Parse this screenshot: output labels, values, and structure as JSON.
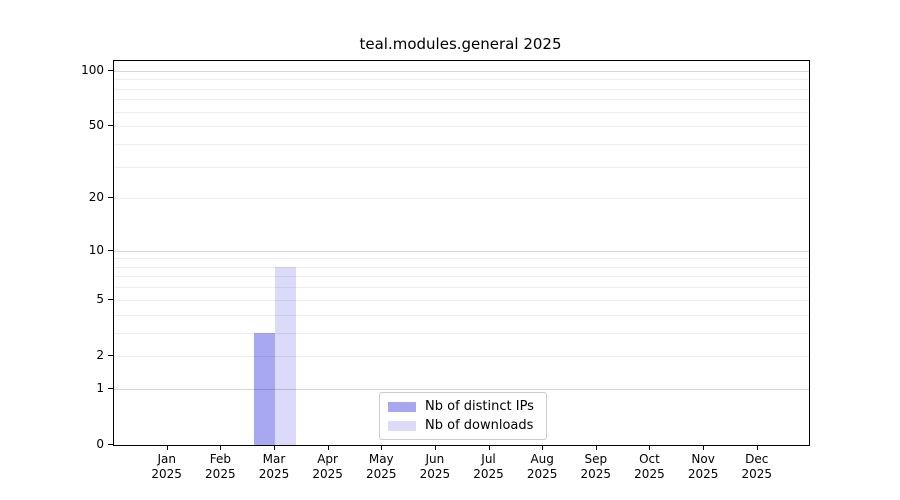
{
  "title": "teal.modules.general 2025",
  "legend": {
    "items": [
      {
        "label": "Nb of distinct IPs",
        "color": "#a8a8f2"
      },
      {
        "label": "Nb of downloads",
        "color": "#dbdbf9"
      }
    ],
    "position": "lower center"
  },
  "chart_data": {
    "type": "bar",
    "title": "teal.modules.general 2025",
    "categories": [
      "Jan 2025",
      "Feb 2025",
      "Mar 2025",
      "Apr 2025",
      "May 2025",
      "Jun 2025",
      "Jul 2025",
      "Aug 2025",
      "Sep 2025",
      "Oct 2025",
      "Nov 2025",
      "Dec 2025"
    ],
    "series": [
      {
        "name": "Nb of distinct IPs",
        "color": "#a8a8f2",
        "values": [
          0,
          0,
          3,
          0,
          0,
          0,
          0,
          0,
          0,
          0,
          0,
          0
        ]
      },
      {
        "name": "Nb of downloads",
        "color": "#dbdbf9",
        "values": [
          0,
          0,
          8,
          0,
          0,
          0,
          0,
          0,
          0,
          0,
          0,
          0
        ]
      }
    ],
    "xlabel": "",
    "ylabel": "",
    "yscale": "log1p",
    "ylim": [
      0,
      113
    ],
    "yticks": [
      0,
      1,
      2,
      5,
      10,
      20,
      50,
      100
    ],
    "major_gridlines": [
      1,
      10,
      100
    ],
    "minor_gridlines": [
      2,
      3,
      4,
      5,
      6,
      7,
      8,
      9,
      20,
      30,
      40,
      50,
      60,
      70,
      80,
      90
    ],
    "grid": true,
    "legend_position": "lower center"
  },
  "colors": {
    "major_grid": "rgba(0,0,0,0.16)",
    "minor_grid": "rgba(0,0,0,0.07)",
    "axis": "#000000",
    "background": "#ffffff"
  }
}
